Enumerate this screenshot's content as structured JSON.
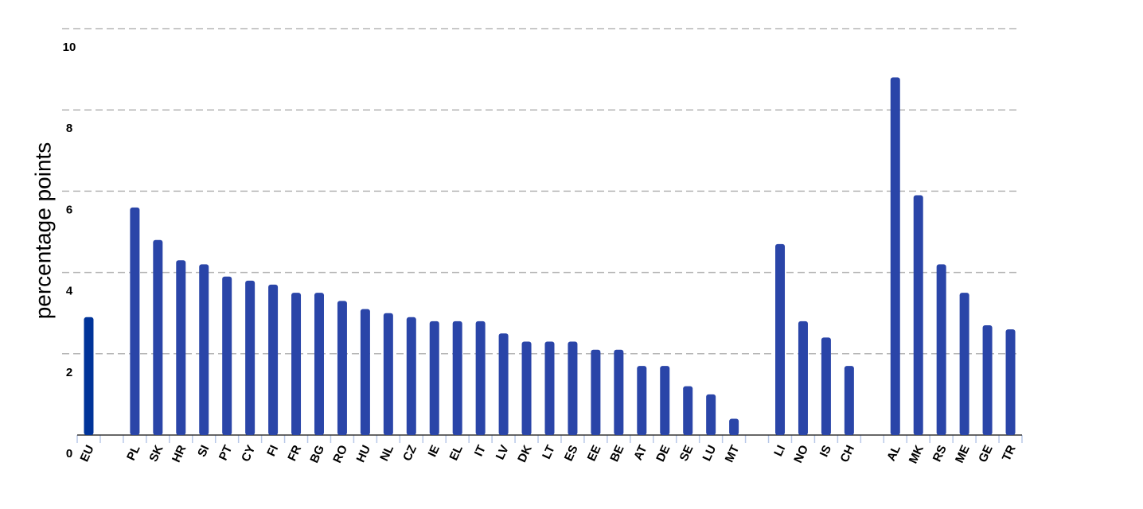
{
  "chart_data": {
    "type": "bar",
    "y_label": "percentage points",
    "categories": [
      "EU",
      null,
      "PL",
      "SK",
      "HR",
      "SI",
      "PT",
      "CY",
      "FI",
      "FR",
      "BG",
      "RO",
      "HU",
      "NL",
      "CZ",
      "IE",
      "EL",
      "IT",
      "LV",
      "DK",
      "LT",
      "ES",
      "EE",
      "BE",
      "AT",
      "DE",
      "SE",
      "LU",
      "MT",
      null,
      "LI",
      "NO",
      "IS",
      "CH",
      null,
      "AL",
      "MK",
      "RS",
      "ME",
      "GE",
      "TR"
    ],
    "values": [
      2.9,
      null,
      5.6,
      4.8,
      4.3,
      4.2,
      3.9,
      3.8,
      3.7,
      3.5,
      3.5,
      3.3,
      3.1,
      3.0,
      2.9,
      2.8,
      2.8,
      2.8,
      2.5,
      2.3,
      2.3,
      2.3,
      2.1,
      2.1,
      1.7,
      1.7,
      1.2,
      1.0,
      0.4,
      null,
      4.7,
      2.8,
      2.4,
      1.7,
      null,
      8.8,
      5.9,
      4.2,
      3.5,
      2.7,
      2.6
    ],
    "color": "#2a45a8",
    "highlight": {
      "category": "EU",
      "color": "#003399"
    },
    "ylim": [
      0,
      10
    ],
    "yticks": [
      0,
      2,
      4,
      6,
      8,
      10
    ],
    "grid": true
  }
}
